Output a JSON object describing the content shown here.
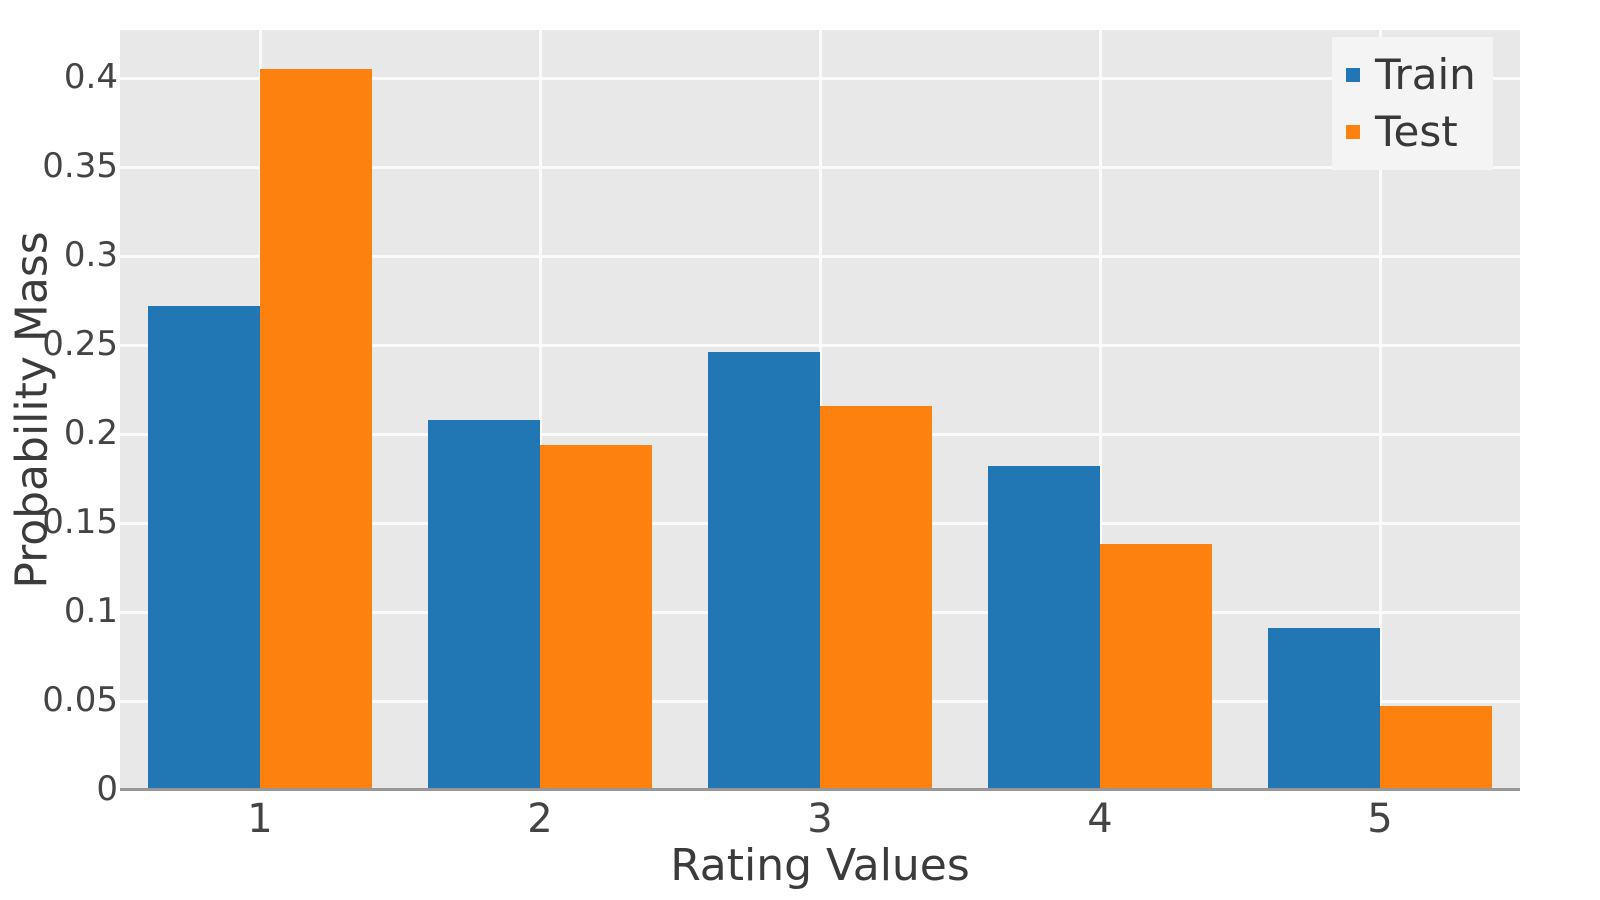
{
  "chart_data": {
    "type": "bar",
    "categories": [
      "1",
      "2",
      "3",
      "4",
      "5"
    ],
    "series": [
      {
        "name": "Train",
        "color": "#2177b4",
        "values": [
          0.272,
          0.208,
          0.246,
          0.182,
          0.091
        ]
      },
      {
        "name": "Test",
        "color": "#fd810e",
        "values": [
          0.405,
          0.194,
          0.216,
          0.138,
          0.047
        ]
      }
    ],
    "title": "",
    "xlabel": "Rating Values",
    "ylabel": "Probability Mass",
    "ylim": [
      0,
      0.427
    ],
    "yticks": [
      0,
      0.05,
      0.1,
      0.15,
      0.2,
      0.25,
      0.3,
      0.35,
      0.4
    ],
    "ytick_labels": [
      "0",
      "0.05",
      "0.1",
      "0.15",
      "0.2",
      "0.25",
      "0.3",
      "0.35",
      "0.4"
    ],
    "grid": true,
    "legend_position": "top-right",
    "bar_group_fraction": 0.8
  },
  "colors": {
    "figure_bg": "#ffffff",
    "plot_bg": "#e8e8e8",
    "gridline": "#fafafa",
    "axis_line": "#979797",
    "tick_text": "#444444",
    "axis_title_text": "#3b3b3b",
    "legend_bg": "#f4f4f4",
    "legend_text": "#383838",
    "train_bar": "#2177b4",
    "test_bar": "#fd810e"
  }
}
